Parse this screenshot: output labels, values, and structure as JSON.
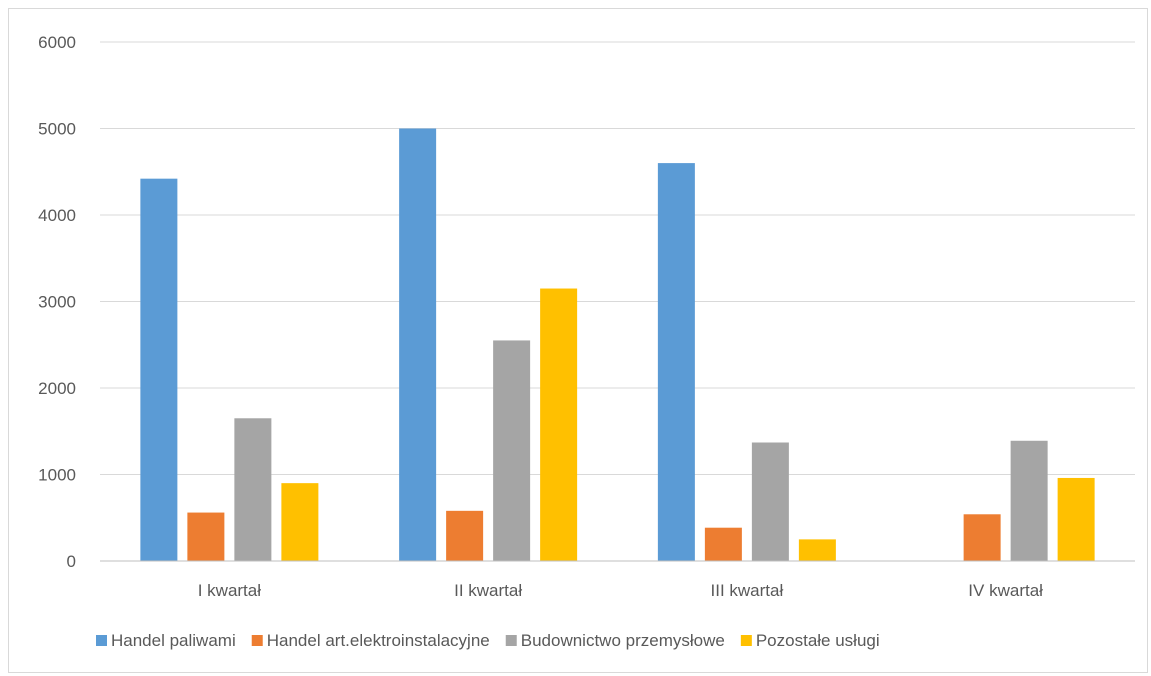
{
  "chart_data": {
    "type": "bar",
    "title": "",
    "xlabel": "",
    "ylabel": "",
    "ylim": [
      0,
      6000
    ],
    "yticks": [
      0,
      1000,
      2000,
      3000,
      4000,
      5000,
      6000
    ],
    "grid": true,
    "legend_position": "bottom",
    "categories": [
      "I kwartał",
      "II kwartał",
      "III kwartał",
      "IV kwartał"
    ],
    "series": [
      {
        "name": "Handel paliwami",
        "color": "#5B9BD5",
        "values": [
          4420,
          5000,
          4600,
          0
        ]
      },
      {
        "name": "Handel art.elektroinstalacyjne",
        "color": "#ED7D31",
        "values": [
          560,
          580,
          385,
          540
        ]
      },
      {
        "name": "Budownictwo przemysłowe",
        "color": "#A5A5A5",
        "values": [
          1650,
          2550,
          1370,
          1390
        ]
      },
      {
        "name": "Pozostałe usługi",
        "color": "#FFC000",
        "values": [
          900,
          3150,
          250,
          960
        ]
      }
    ]
  }
}
